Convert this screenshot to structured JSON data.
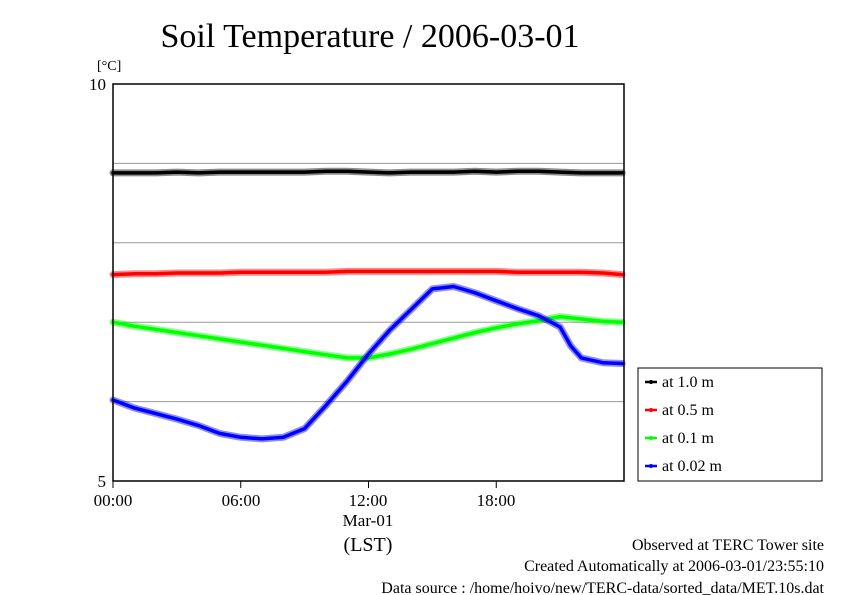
{
  "chart_data": {
    "type": "line",
    "title": "Soil Temperature / 2006-03-01",
    "ylabel": "[°C]",
    "ylim": [
      5,
      10
    ],
    "yticks": [
      "10",
      "5"
    ],
    "ygrid": [
      6,
      7,
      8,
      9
    ],
    "xlim": [
      "00:00",
      "24:00"
    ],
    "xticks": [
      "00:00",
      "06:00",
      "12:00",
      "18:00"
    ],
    "xsublabel": "Mar-01",
    "xunit": "(LST)",
    "grid": true,
    "legend_position": "right",
    "series": [
      {
        "name": "at 1.0 m",
        "color": "#000000",
        "x": [
          "00:00",
          "01:00",
          "02:00",
          "03:00",
          "04:00",
          "05:00",
          "06:00",
          "07:00",
          "08:00",
          "09:00",
          "10:00",
          "11:00",
          "12:00",
          "13:00",
          "14:00",
          "15:00",
          "16:00",
          "17:00",
          "18:00",
          "19:00",
          "20:00",
          "21:00",
          "22:00",
          "23:00",
          "23:55"
        ],
        "y": [
          8.88,
          8.88,
          8.88,
          8.89,
          8.88,
          8.89,
          8.89,
          8.89,
          8.89,
          8.89,
          8.9,
          8.9,
          8.89,
          8.88,
          8.89,
          8.89,
          8.89,
          8.9,
          8.89,
          8.9,
          8.9,
          8.89,
          8.88,
          8.88,
          8.88
        ]
      },
      {
        "name": "at 0.5 m",
        "color": "#ff0000",
        "x": [
          "00:00",
          "01:00",
          "02:00",
          "03:00",
          "04:00",
          "05:00",
          "06:00",
          "07:00",
          "08:00",
          "09:00",
          "10:00",
          "11:00",
          "12:00",
          "13:00",
          "14:00",
          "15:00",
          "16:00",
          "17:00",
          "18:00",
          "19:00",
          "20:00",
          "21:00",
          "22:00",
          "23:00",
          "23:55"
        ],
        "y": [
          7.6,
          7.61,
          7.61,
          7.62,
          7.62,
          7.62,
          7.63,
          7.63,
          7.63,
          7.63,
          7.63,
          7.64,
          7.64,
          7.64,
          7.64,
          7.64,
          7.64,
          7.64,
          7.64,
          7.63,
          7.63,
          7.63,
          7.63,
          7.62,
          7.6
        ]
      },
      {
        "name": "at 0.1 m",
        "color": "#00ff00",
        "x": [
          "00:00",
          "01:00",
          "02:00",
          "03:00",
          "04:00",
          "05:00",
          "06:00",
          "07:00",
          "08:00",
          "09:00",
          "10:00",
          "11:00",
          "12:00",
          "13:00",
          "14:00",
          "15:00",
          "16:00",
          "17:00",
          "18:00",
          "19:00",
          "20:00",
          "21:00",
          "22:00",
          "23:00",
          "23:55"
        ],
        "y": [
          7.0,
          6.95,
          6.91,
          6.87,
          6.83,
          6.79,
          6.75,
          6.71,
          6.67,
          6.63,
          6.59,
          6.55,
          6.55,
          6.6,
          6.66,
          6.73,
          6.8,
          6.87,
          6.93,
          6.98,
          7.02,
          7.07,
          7.04,
          7.01,
          7.0
        ]
      },
      {
        "name": "at 0.02 m",
        "color": "#0000ff",
        "x": [
          "00:00",
          "01:00",
          "02:00",
          "03:00",
          "04:00",
          "05:00",
          "06:00",
          "07:00",
          "08:00",
          "09:00",
          "10:00",
          "11:00",
          "12:00",
          "13:00",
          "14:00",
          "15:00",
          "16:00",
          "17:00",
          "18:00",
          "19:00",
          "20:00",
          "21:00",
          "21:30",
          "22:00",
          "23:00",
          "23:55"
        ],
        "y": [
          6.02,
          5.92,
          5.85,
          5.78,
          5.7,
          5.6,
          5.55,
          5.53,
          5.55,
          5.66,
          5.95,
          6.26,
          6.6,
          6.9,
          7.16,
          7.42,
          7.45,
          7.37,
          7.27,
          7.17,
          7.08,
          6.94,
          6.7,
          6.55,
          6.49,
          6.48
        ]
      }
    ]
  },
  "footer": {
    "line1": "Observed at TERC Tower site",
    "line2": "Created Automatically at 2006-03-01/23:55:10",
    "line3": "Data source : /home/hoivo/new/TERC-data/sorted_data/MET.10s.dat"
  }
}
